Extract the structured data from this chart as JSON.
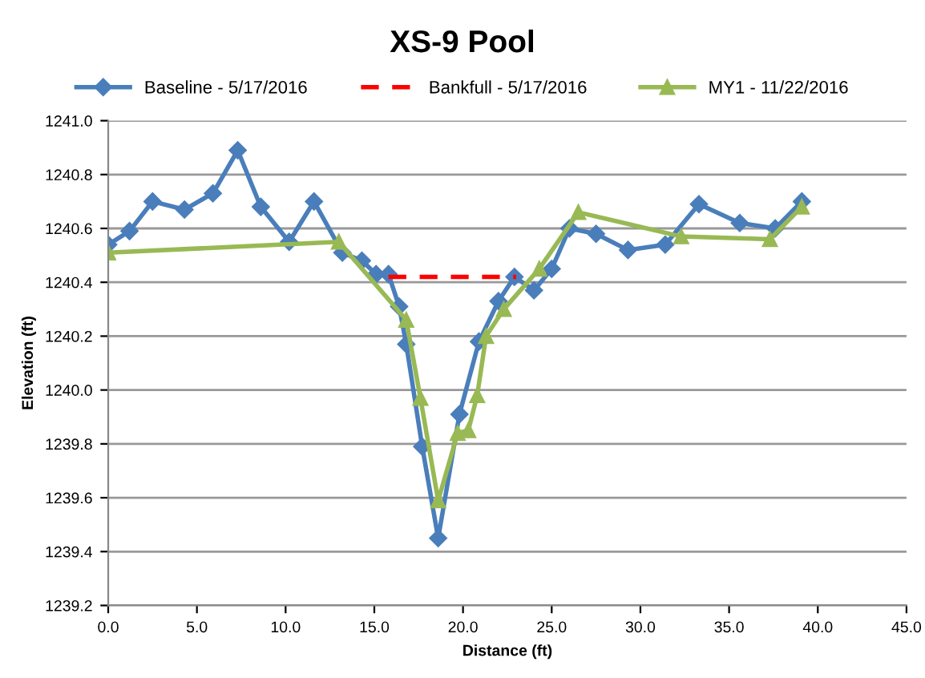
{
  "chart_data": {
    "type": "line",
    "title": "XS-9 Pool",
    "xlabel": "Distance (ft)",
    "ylabel": "Elevation (ft)",
    "xlim": [
      0,
      45
    ],
    "xticks": [
      {
        "value": 0,
        "label": "0.0"
      },
      {
        "value": 5,
        "label": "5.0"
      },
      {
        "value": 10,
        "label": "10.0"
      },
      {
        "value": 15,
        "label": "15.0"
      },
      {
        "value": 20,
        "label": "20.0"
      },
      {
        "value": 25,
        "label": "25.0"
      },
      {
        "value": 30,
        "label": "30.0"
      },
      {
        "value": 35,
        "label": "35.0"
      },
      {
        "value": 40,
        "label": "40.0"
      },
      {
        "value": 45,
        "label": "45.0"
      }
    ],
    "ylim": [
      1239.2,
      1241.0
    ],
    "yticks": [
      {
        "value": 1239.2,
        "label": "1239.2"
      },
      {
        "value": 1239.4,
        "label": "1239.4"
      },
      {
        "value": 1239.6,
        "label": "1239.6"
      },
      {
        "value": 1239.8,
        "label": "1239.8"
      },
      {
        "value": 1240.0,
        "label": "1240.0"
      },
      {
        "value": 1240.2,
        "label": "1240.2"
      },
      {
        "value": 1240.4,
        "label": "1240.4"
      },
      {
        "value": 1240.6,
        "label": "1240.6"
      },
      {
        "value": 1240.8,
        "label": "1240.8"
      },
      {
        "value": 1241.0,
        "label": "1241.0"
      }
    ],
    "grid": "y",
    "legend": "top",
    "series": [
      {
        "name": "Baseline - 5/17/2016",
        "color": "#4a7ebb",
        "marker": "diamond",
        "line_style": "solid",
        "x": [
          0,
          1.2,
          2.5,
          4.3,
          5.9,
          7.3,
          8.6,
          10.2,
          11.6,
          13.2,
          14.3,
          15.1,
          15.8,
          16.4,
          16.8,
          17.7,
          18.6,
          19.8,
          20.9,
          22.0,
          22.9,
          24.0,
          25.0,
          26.0,
          27.5,
          29.3,
          31.4,
          33.3,
          35.6,
          37.6,
          39.1
        ],
        "values": [
          1240.54,
          1240.59,
          1240.7,
          1240.67,
          1240.73,
          1240.89,
          1240.68,
          1240.55,
          1240.7,
          1240.51,
          1240.48,
          1240.43,
          1240.43,
          1240.31,
          1240.17,
          1239.79,
          1239.45,
          1239.91,
          1240.18,
          1240.33,
          1240.42,
          1240.37,
          1240.45,
          1240.6,
          1240.58,
          1240.52,
          1240.54,
          1240.69,
          1240.62,
          1240.6,
          1240.7
        ]
      },
      {
        "name": "Bankfull - 5/17/2016",
        "color": "#ff0000",
        "marker": "none",
        "line_style": "dashed",
        "x": [
          15.8,
          23.0
        ],
        "values": [
          1240.42,
          1240.42
        ]
      },
      {
        "name": "MY1 - 11/22/2016",
        "color": "#98b954",
        "marker": "triangle",
        "line_style": "solid",
        "x": [
          0,
          13.0,
          16.8,
          17.6,
          18.6,
          19.7,
          20.3,
          20.8,
          21.3,
          22.3,
          24.3,
          26.5,
          32.3,
          37.3,
          39.1
        ],
        "values": [
          1240.51,
          1240.55,
          1240.26,
          1239.97,
          1239.59,
          1239.84,
          1239.85,
          1239.98,
          1240.2,
          1240.3,
          1240.45,
          1240.66,
          1240.57,
          1240.56,
          1240.68
        ]
      }
    ]
  }
}
